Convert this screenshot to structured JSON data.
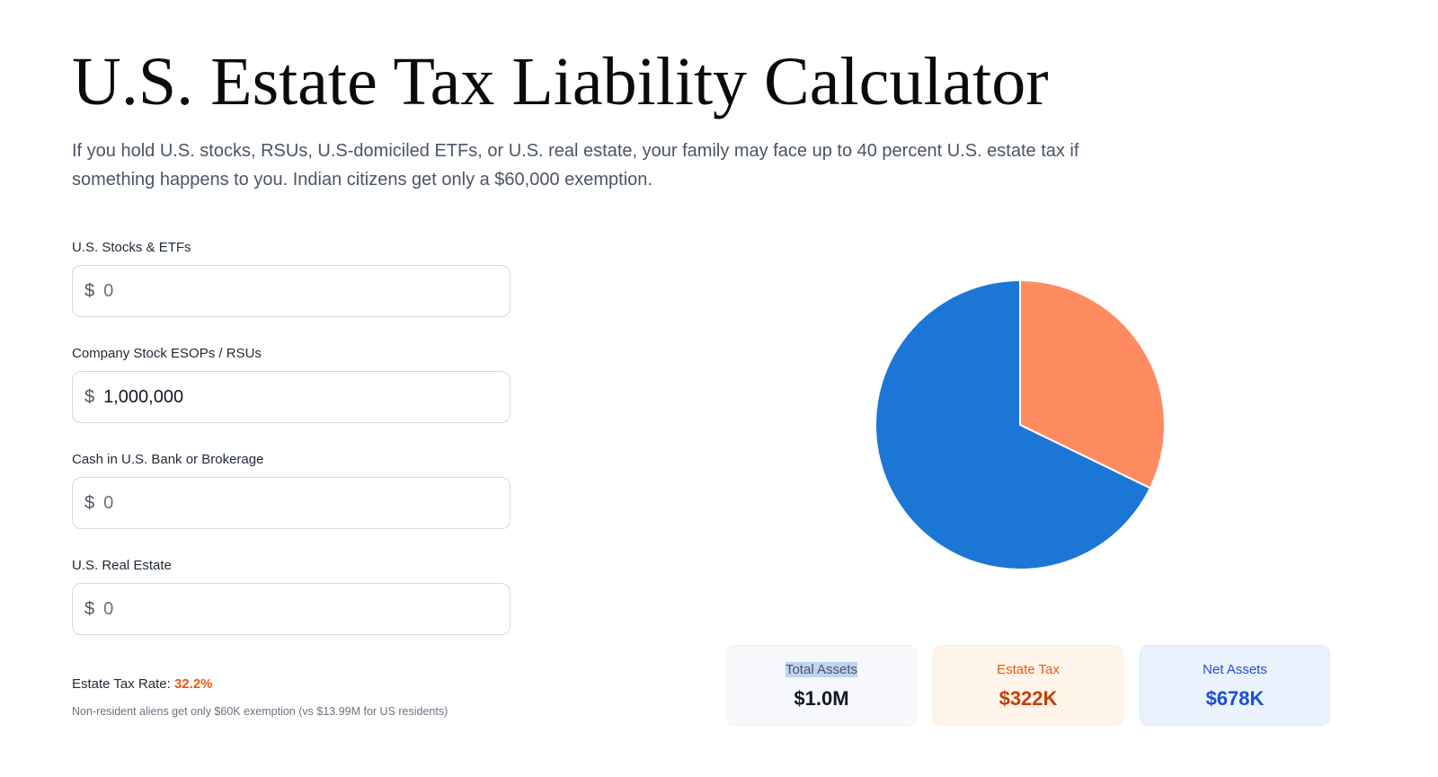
{
  "page": {
    "title": "U.S. Estate Tax Liability Calculator",
    "subtitle": "If you hold U.S. stocks, RSUs, U.S-domiciled ETFs, or U.S. real estate, your family may face up to 40 percent U.S. estate tax if something happens to you. Indian citizens get only a $60,000 exemption."
  },
  "form": {
    "currency_symbol": "$",
    "fields": [
      {
        "label": "U.S. Stocks & ETFs",
        "value": "",
        "placeholder": "0"
      },
      {
        "label": "Company Stock ESOPs / RSUs",
        "value": "1,000,000",
        "placeholder": "0"
      },
      {
        "label": "Cash in U.S. Bank or Brokerage",
        "value": "",
        "placeholder": "0"
      },
      {
        "label": "U.S. Real Estate",
        "value": "",
        "placeholder": "0"
      }
    ],
    "rate_label": "Estate Tax Rate:",
    "rate_value": "32.2%",
    "note": "Non-resident aliens get only $60K exemption (vs $13.99M for US residents)"
  },
  "chart_data": {
    "type": "pie",
    "slices": [
      {
        "label": "Estate Tax",
        "value": 322,
        "color": "#ff8c61"
      },
      {
        "label": "Net Assets",
        "value": 678,
        "color": "#1c76d6"
      }
    ],
    "start": "top",
    "direction": "clockwise"
  },
  "summary": {
    "cards": [
      {
        "label": "Total Assets",
        "value": "$1.0M"
      },
      {
        "label": "Estate Tax",
        "value": "$322K"
      },
      {
        "label": "Net Assets",
        "value": "$678K"
      }
    ]
  }
}
